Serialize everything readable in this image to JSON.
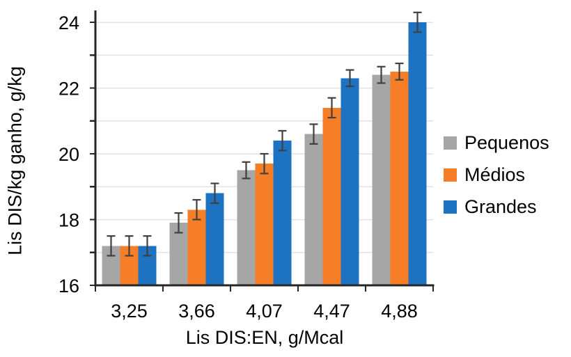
{
  "chart_data": {
    "type": "bar",
    "xlabel": "Lis DIS:EN, g/Mcal",
    "ylabel": "Lis DIS/kg ganho, g/kg",
    "categories": [
      "3,25",
      "3,66",
      "4,07",
      "4,47",
      "4,88"
    ],
    "series": [
      {
        "name": "Pequenos",
        "color": "#A6A6A6",
        "values": [
          17.2,
          17.9,
          19.5,
          20.6,
          22.4
        ],
        "errors": [
          0.3,
          0.3,
          0.25,
          0.3,
          0.25
        ]
      },
      {
        "name": "Médios",
        "color": "#F57E27",
        "values": [
          17.2,
          18.3,
          19.7,
          21.4,
          22.5
        ],
        "errors": [
          0.3,
          0.3,
          0.3,
          0.3,
          0.25
        ]
      },
      {
        "name": "Grandes",
        "color": "#1D72C2",
        "values": [
          17.2,
          18.8,
          20.4,
          22.3,
          24.0
        ],
        "errors": [
          0.3,
          0.3,
          0.3,
          0.25,
          0.3
        ]
      }
    ],
    "ylim": [
      16,
      24.4
    ],
    "yticks_labeled": [
      16,
      18,
      20,
      22,
      24
    ],
    "gridline_step": 1,
    "grid": true,
    "error_bars": true,
    "legend_position": "right",
    "colors": {
      "axis": "#262626",
      "gridline": "#E3E3E3",
      "error_bar": "#404040",
      "text": "#000000",
      "background": "#FFFFFF"
    }
  }
}
